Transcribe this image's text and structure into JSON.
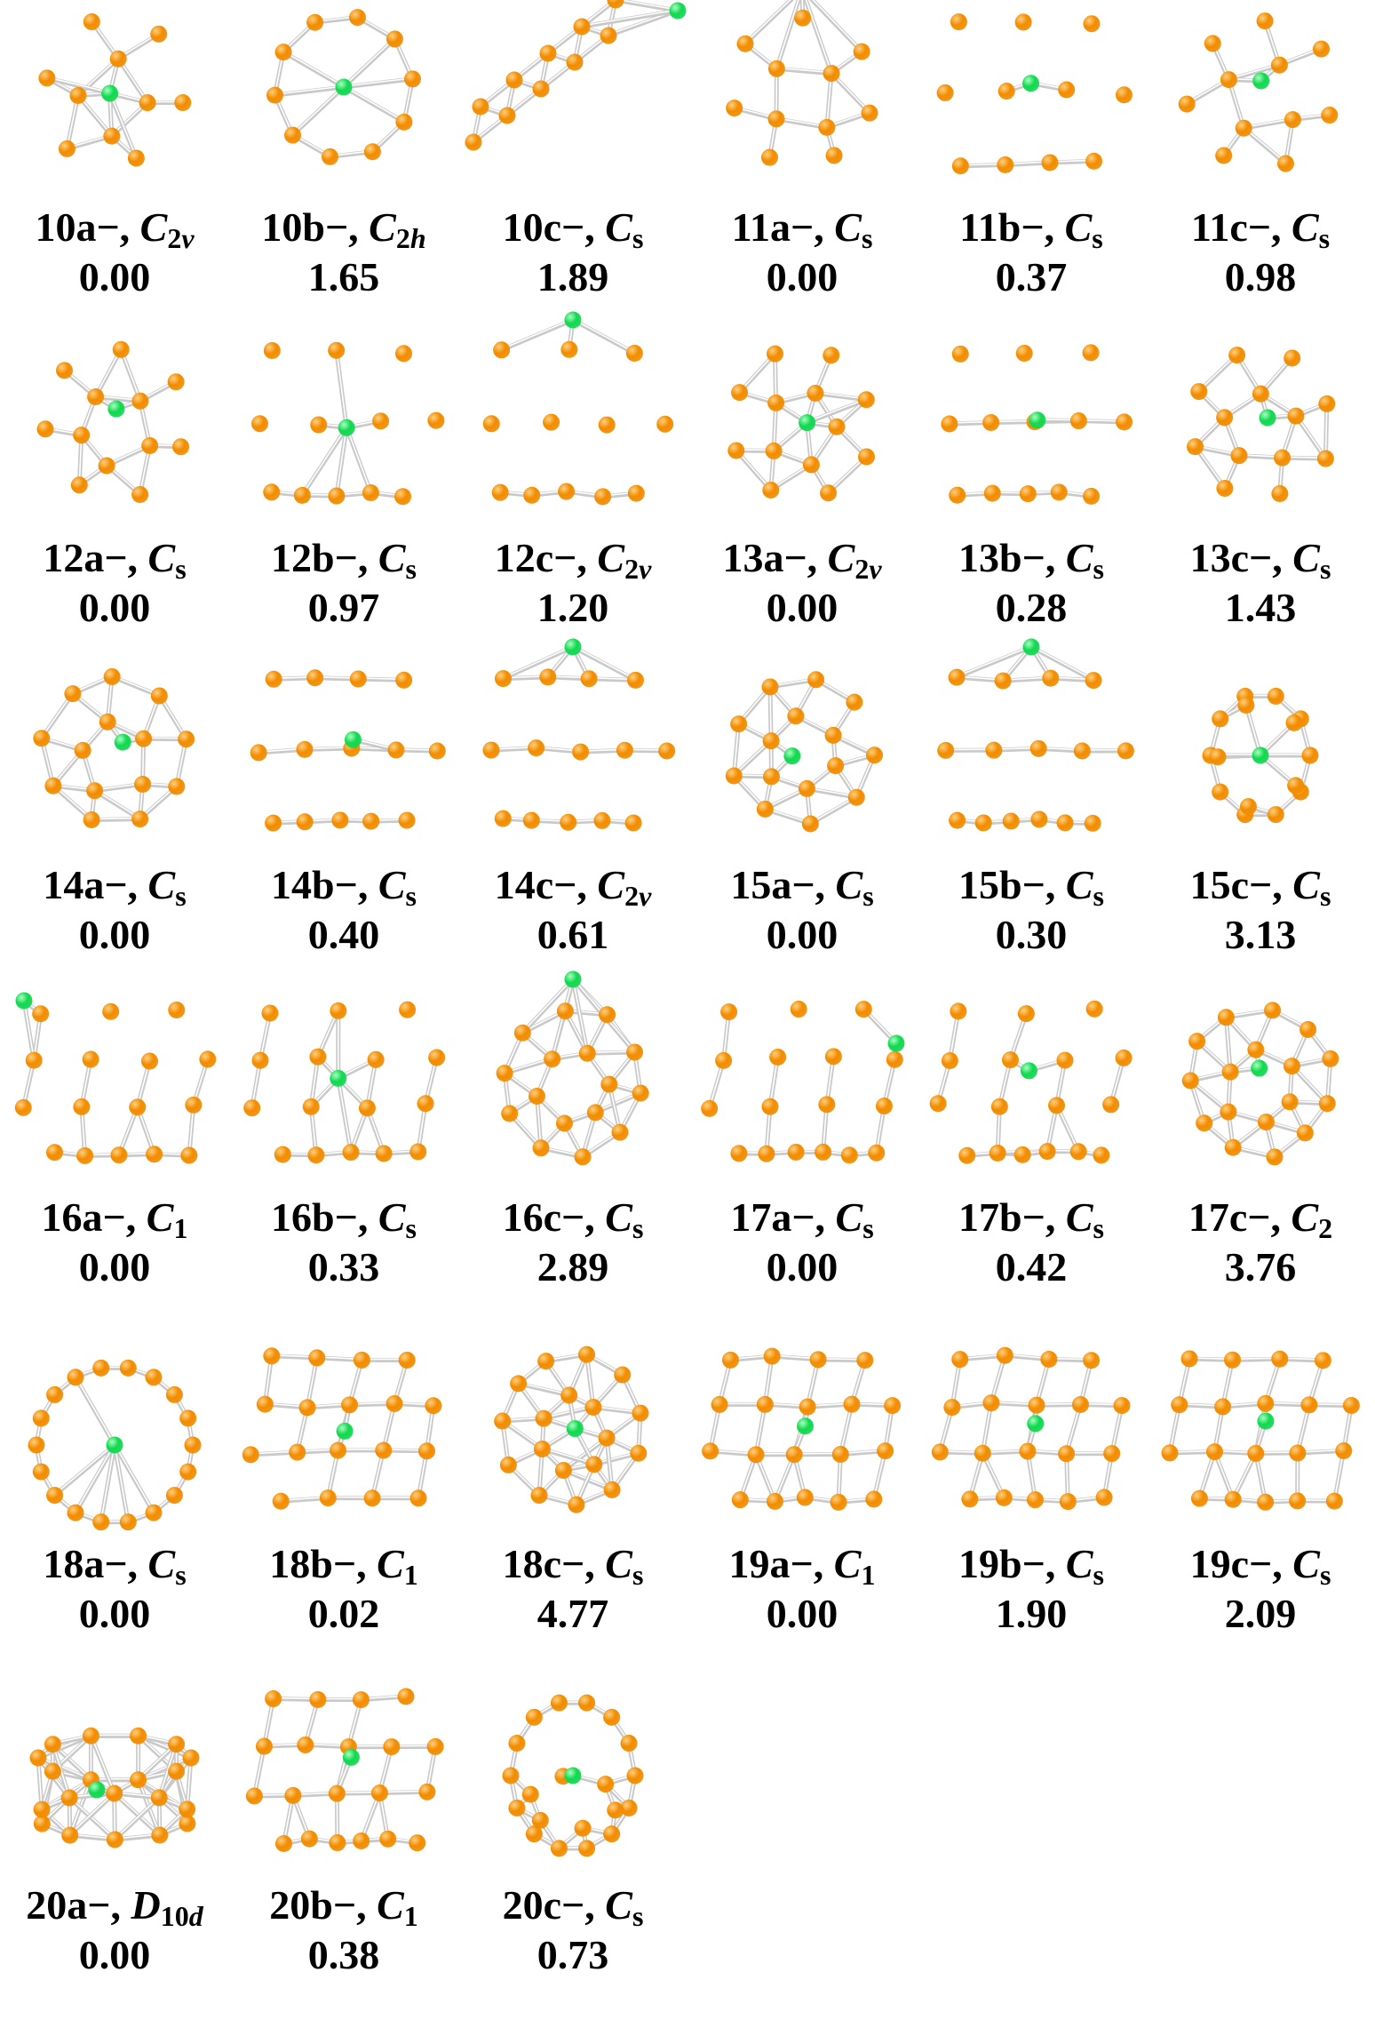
{
  "colors": {
    "host_atom": "#f28c00",
    "host_atom_highlight": "#ffd080",
    "dopant_atom": "#12d850",
    "dopant_atom_highlight": "#a8ffc0",
    "bond": "#c9c9c9",
    "text": "#000000"
  },
  "structures": [
    {
      "name": "10a",
      "sup": "−",
      "sym_main": "C",
      "sym_sub": "2v",
      "energy": "0.00"
    },
    {
      "name": "10b",
      "sup": "−",
      "sym_main": "C",
      "sym_sub": "2h",
      "energy": "1.65"
    },
    {
      "name": "10c",
      "sup": "−",
      "sym_main": "C",
      "sym_sub": "s",
      "energy": "1.89"
    },
    {
      "name": "11a",
      "sup": "−",
      "sym_main": "C",
      "sym_sub": "s",
      "energy": "0.00"
    },
    {
      "name": "11b",
      "sup": "−",
      "sym_main": "C",
      "sym_sub": "s",
      "energy": "0.37"
    },
    {
      "name": "11c",
      "sup": "−",
      "sym_main": "C",
      "sym_sub": "s",
      "energy": "0.98"
    },
    {
      "name": "12a",
      "sup": "−",
      "sym_main": "C",
      "sym_sub": "s",
      "energy": "0.00"
    },
    {
      "name": "12b",
      "sup": "−",
      "sym_main": "C",
      "sym_sub": "s",
      "energy": "0.97"
    },
    {
      "name": "12c",
      "sup": "−",
      "sym_main": "C",
      "sym_sub": "2v",
      "energy": "1.20"
    },
    {
      "name": "13a",
      "sup": "−",
      "sym_main": "C",
      "sym_sub": "2v",
      "energy": "0.00"
    },
    {
      "name": "13b",
      "sup": "−",
      "sym_main": "C",
      "sym_sub": "s",
      "energy": "0.28"
    },
    {
      "name": "13c",
      "sup": "−",
      "sym_main": "C",
      "sym_sub": "s",
      "energy": "1.43"
    },
    {
      "name": "14a",
      "sup": "−",
      "sym_main": "C",
      "sym_sub": "s",
      "energy": "0.00"
    },
    {
      "name": "14b",
      "sup": "−",
      "sym_main": "C",
      "sym_sub": "s",
      "energy": "0.40"
    },
    {
      "name": "14c",
      "sup": "−",
      "sym_main": "C",
      "sym_sub": "2v",
      "energy": "0.61"
    },
    {
      "name": "15a",
      "sup": "−",
      "sym_main": "C",
      "sym_sub": "s",
      "energy": "0.00"
    },
    {
      "name": "15b",
      "sup": "−",
      "sym_main": "C",
      "sym_sub": "s",
      "energy": "0.30"
    },
    {
      "name": "15c",
      "sup": "−",
      "sym_main": "C",
      "sym_sub": "s",
      "energy": "3.13"
    },
    {
      "name": "16a",
      "sup": "−",
      "sym_main": "C",
      "sym_sub": "1",
      "energy": "0.00"
    },
    {
      "name": "16b",
      "sup": "−",
      "sym_main": "C",
      "sym_sub": "s",
      "energy": "0.33"
    },
    {
      "name": "16c",
      "sup": "−",
      "sym_main": "C",
      "sym_sub": "s",
      "energy": "2.89"
    },
    {
      "name": "17a",
      "sup": "−",
      "sym_main": "C",
      "sym_sub": "s",
      "energy": "0.00"
    },
    {
      "name": "17b",
      "sup": "−",
      "sym_main": "C",
      "sym_sub": "s",
      "energy": "0.42"
    },
    {
      "name": "17c",
      "sup": "−",
      "sym_main": "C",
      "sym_sub": "2",
      "energy": "3.76"
    },
    {
      "name": "18a",
      "sup": "−",
      "sym_main": "C",
      "sym_sub": "s",
      "energy": "0.00"
    },
    {
      "name": "18b",
      "sup": "−",
      "sym_main": "C",
      "sym_sub": "1",
      "energy": "0.02"
    },
    {
      "name": "18c",
      "sup": "−",
      "sym_main": "C",
      "sym_sub": "s",
      "energy": "4.77"
    },
    {
      "name": "19a",
      "sup": "−",
      "sym_main": "C",
      "sym_sub": "1",
      "energy": "0.00"
    },
    {
      "name": "19b",
      "sup": "−",
      "sym_main": "C",
      "sym_sub": "s",
      "energy": "1.90"
    },
    {
      "name": "19c",
      "sup": "−",
      "sym_main": "C",
      "sym_sub": "s",
      "energy": "2.09"
    },
    {
      "name": "20a",
      "sup": "−",
      "sym_main": "D",
      "sym_sub": "10d",
      "energy": "0.00"
    },
    {
      "name": "20b",
      "sup": "−",
      "sym_main": "C",
      "sym_sub": "1",
      "energy": "0.38"
    },
    {
      "name": "20c",
      "sup": "−",
      "sym_main": "C",
      "sym_sub": "s",
      "energy": "0.73"
    }
  ]
}
